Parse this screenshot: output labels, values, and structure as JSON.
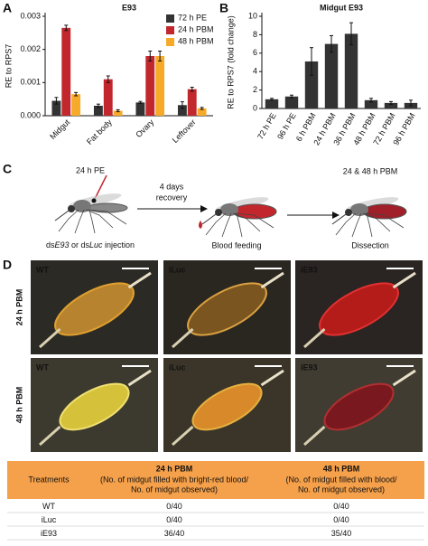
{
  "figure": {
    "panel_labels": [
      "A",
      "B",
      "C",
      "D"
    ]
  },
  "chart_data": [
    {
      "type": "bar",
      "title": "E93",
      "y_label": "RE to RPS7",
      "categories": [
        "Midgut",
        "Fat body",
        "Ovary",
        "Leftover"
      ],
      "series": [
        {
          "name": "72 h PE",
          "color": "#333333",
          "values": [
            0.00045,
            0.0003,
            0.0004,
            0.00032
          ],
          "errors": [
            0.0001,
            5e-05,
            3e-05,
            0.0001
          ]
        },
        {
          "name": "24 h PBM",
          "color": "#c1272d",
          "values": [
            0.00265,
            0.0011,
            0.0018,
            0.0008
          ],
          "errors": [
            8e-05,
            0.0001,
            0.00015,
            6e-05
          ]
        },
        {
          "name": "48 h PBM",
          "color": "#f7a928",
          "values": [
            0.00065,
            0.00015,
            0.0018,
            0.00022
          ],
          "errors": [
            5e-05,
            3e-05,
            0.00015,
            3e-05
          ]
        }
      ],
      "ylim": [
        0,
        0.003
      ],
      "yticks": [
        {
          "value": 0,
          "label": "0.000"
        },
        {
          "value": 0.001,
          "label": "0.001"
        },
        {
          "value": 0.002,
          "label": "0.002"
        },
        {
          "value": 0.003,
          "label": "0.003"
        }
      ]
    },
    {
      "type": "bar",
      "title": "Midgut E93",
      "y_label": "RE to RPS7 (fold change)",
      "categories": [
        "72 h PE",
        "96 h PE",
        "6 h PBM",
        "24 h PBM",
        "36 h PBM",
        "48 h PBM",
        "72 h PBM",
        "96 h PBM"
      ],
      "color": "#333333",
      "values": [
        1.0,
        1.3,
        5.1,
        7.0,
        8.1,
        0.9,
        0.6,
        0.6
      ],
      "errors": [
        0.1,
        0.15,
        1.5,
        0.9,
        1.2,
        0.2,
        0.15,
        0.3
      ],
      "ylim": [
        0,
        10
      ],
      "yticks": [
        0,
        2,
        4,
        6,
        8,
        10
      ]
    }
  ],
  "diagram": {
    "step1_label": "24 h PE",
    "arrow_label": [
      "4 days",
      "recovery"
    ],
    "step3_label": "24 & 48 h PBM",
    "injection_caption": [
      "ds",
      "E93",
      " or ds",
      "Luc",
      " injection"
    ],
    "feeding_caption": "Blood feeding",
    "dissection_caption": "Dissection"
  },
  "images": {
    "row_labels": [
      "24 h PBM",
      "48 h PBM"
    ],
    "column_labels": [
      "WT",
      "iLuc",
      "iE93"
    ]
  },
  "table": {
    "header": [
      "Treatments",
      {
        "title": "24 h PBM",
        "subtitle": [
          "(No. of midgut filled with bright-red blood/",
          "No. of midgut observed)"
        ]
      },
      {
        "title": "48 h PBM",
        "subtitle": [
          "(No. of midgut filled with blood/",
          "No. of midgut observed)"
        ]
      }
    ],
    "rows": [
      [
        "WT",
        "0/40",
        "0/40"
      ],
      [
        "iLuc",
        "0/40",
        "0/40"
      ],
      [
        "iE93",
        "36/40",
        "35/40"
      ]
    ]
  }
}
